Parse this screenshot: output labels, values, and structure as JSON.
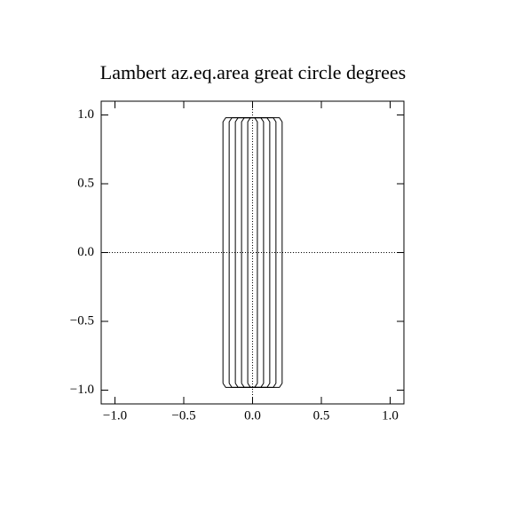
{
  "chart_data": {
    "type": "contour",
    "title": "Lambert az.eq.area great circle degrees",
    "xlim": [
      -1.1,
      1.1
    ],
    "ylim": [
      -1.1,
      1.1
    ],
    "xticks": [
      {
        "value": -1,
        "label": "−1.0"
      },
      {
        "value": -0.5,
        "label": "−0.5"
      },
      {
        "value": 0,
        "label": "0.0"
      },
      {
        "value": 0.5,
        "label": "0.5"
      },
      {
        "value": 1,
        "label": "1.0"
      }
    ],
    "yticks": [
      {
        "value": -1,
        "label": "−1.0"
      },
      {
        "value": -0.5,
        "label": "−0.5"
      },
      {
        "value": 0,
        "label": "0.0"
      },
      {
        "value": 0.5,
        "label": "0.5"
      },
      {
        "value": 1,
        "label": "1.0"
      }
    ],
    "zero_lines": true,
    "series": [
      {
        "color": "#000000",
        "x": [
          -0.215,
          -0.195,
          0.195,
          0.215,
          0.215,
          0.195,
          -0.195,
          -0.215,
          -0.215
        ],
        "values": [
          -0.95,
          -0.98,
          -0.98,
          -0.95,
          0.95,
          0.98,
          0.98,
          0.95,
          -0.95
        ]
      },
      {
        "color": "#000000",
        "x": [
          -0.17,
          -0.15,
          0.15,
          0.17,
          0.17,
          0.15,
          -0.15,
          -0.17,
          -0.17
        ],
        "values": [
          -0.95,
          -0.98,
          -0.98,
          -0.95,
          0.95,
          0.98,
          0.98,
          0.95,
          -0.95
        ]
      },
      {
        "color": "#000000",
        "x": [
          -0.125,
          -0.105,
          0.105,
          0.125,
          0.125,
          0.105,
          -0.105,
          -0.125,
          -0.125
        ],
        "values": [
          -0.95,
          -0.98,
          -0.98,
          -0.95,
          0.95,
          0.98,
          0.98,
          0.95,
          -0.95
        ]
      },
      {
        "color": "#000000",
        "x": [
          -0.08,
          -0.06,
          0.06,
          0.08,
          0.08,
          0.06,
          -0.06,
          -0.08,
          -0.08
        ],
        "values": [
          -0.95,
          -0.98,
          -0.98,
          -0.95,
          0.95,
          0.98,
          0.98,
          0.95,
          -0.95
        ]
      },
      {
        "color": "#000000",
        "x": [
          -0.035,
          -0.015,
          0.015,
          0.035,
          0.035,
          0.015,
          -0.015,
          -0.035,
          -0.035
        ],
        "values": [
          -0.95,
          -0.98,
          -0.98,
          -0.95,
          0.95,
          0.98,
          0.98,
          0.95,
          -0.95
        ]
      }
    ]
  }
}
